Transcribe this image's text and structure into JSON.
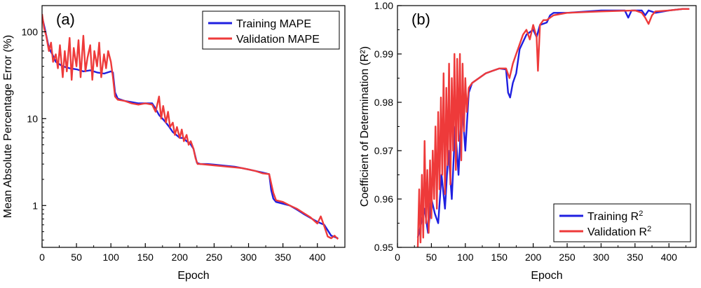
{
  "chart_data": [
    {
      "type": "line",
      "panel_label": "(a)",
      "xlabel": "Epoch",
      "ylabel": "Mean Absolute Percentage Error (%)",
      "yscale": "log",
      "xlim": [
        0,
        440
      ],
      "ylim": [
        0.33,
        200
      ],
      "xticks": [
        "0",
        "50",
        "100",
        "150",
        "200",
        "250",
        "300",
        "350",
        "400"
      ],
      "xtick_values": [
        0,
        50,
        100,
        150,
        200,
        250,
        300,
        350,
        400
      ],
      "yticks": [
        "1",
        "10",
        "100"
      ],
      "ytick_values": [
        1,
        10,
        100
      ],
      "legend_position": "top-right",
      "series": [
        {
          "name": "Training MAPE",
          "color": "#1f1fe0",
          "x": [
            0,
            5,
            10,
            15,
            20,
            30,
            40,
            50,
            60,
            70,
            80,
            90,
            100,
            103,
            106,
            110,
            120,
            130,
            140,
            150,
            160,
            165,
            170,
            175,
            180,
            185,
            190,
            195,
            200,
            205,
            210,
            215,
            220,
            225,
            230,
            240,
            250,
            260,
            270,
            280,
            290,
            300,
            310,
            320,
            330,
            333,
            336,
            340,
            350,
            360,
            370,
            380,
            390,
            400,
            410,
            420,
            430
          ],
          "y": [
            150,
            100,
            65,
            55,
            45,
            40,
            38,
            37,
            35,
            36,
            34,
            33,
            35,
            34,
            20,
            17,
            16,
            15.5,
            15,
            15,
            15,
            13,
            11,
            10,
            9,
            8,
            7,
            6.5,
            6,
            6,
            5.5,
            5.2,
            4.5,
            3.1,
            3.0,
            3.0,
            2.95,
            2.9,
            2.85,
            2.8,
            2.7,
            2.6,
            2.5,
            2.4,
            2.3,
            1.5,
            1.2,
            1.1,
            1.05,
            1.0,
            0.9,
            0.8,
            0.72,
            0.65,
            0.6,
            0.45,
            0.42
          ]
        },
        {
          "name": "Validation MAPE",
          "color": "#ee3a3a",
          "x": [
            0,
            3,
            6,
            10,
            13,
            16,
            20,
            23,
            26,
            30,
            33,
            36,
            40,
            43,
            46,
            50,
            53,
            56,
            60,
            63,
            66,
            70,
            73,
            76,
            80,
            83,
            86,
            90,
            93,
            96,
            100,
            103,
            106,
            110,
            120,
            130,
            140,
            150,
            160,
            165,
            170,
            173,
            176,
            180,
            183,
            186,
            190,
            193,
            196,
            200,
            203,
            206,
            210,
            213,
            216,
            220,
            223,
            226,
            230,
            240,
            250,
            260,
            270,
            280,
            290,
            300,
            310,
            320,
            330,
            333,
            336,
            340,
            350,
            360,
            370,
            380,
            390,
            400,
            405,
            410,
            415,
            420,
            425,
            430
          ],
          "y": [
            160,
            110,
            90,
            60,
            75,
            45,
            55,
            38,
            70,
            30,
            60,
            35,
            85,
            28,
            65,
            40,
            80,
            30,
            90,
            35,
            50,
            70,
            28,
            60,
            40,
            75,
            30,
            55,
            38,
            60,
            45,
            30,
            18,
            16.5,
            16,
            15,
            14.5,
            15,
            14.5,
            12,
            18,
            10,
            14,
            9,
            12,
            8,
            9,
            6.5,
            8,
            6,
            7.5,
            5.5,
            6.5,
            5,
            5.5,
            4.5,
            3.5,
            3.0,
            3.0,
            2.95,
            2.9,
            2.85,
            2.8,
            2.75,
            2.7,
            2.6,
            2.5,
            2.35,
            2.3,
            1.8,
            1.4,
            1.15,
            1.1,
            1.0,
            0.92,
            0.82,
            0.73,
            0.62,
            0.75,
            0.58,
            0.44,
            0.42,
            0.45,
            0.41
          ]
        }
      ]
    },
    {
      "type": "line",
      "panel_label": "(b)",
      "xlabel": "Epoch",
      "ylabel": "Coefficient of Determination (R²)",
      "xlim": [
        0,
        440
      ],
      "ylim": [
        0.95,
        1.0
      ],
      "xticks": [
        "0",
        "50",
        "100",
        "150",
        "200",
        "250",
        "300",
        "350",
        "400"
      ],
      "xtick_values": [
        0,
        50,
        100,
        150,
        200,
        250,
        300,
        350,
        400
      ],
      "yticks": [
        "0.95",
        "0.96",
        "0.97",
        "0.98",
        "0.99",
        "1.00"
      ],
      "ytick_values": [
        0.95,
        0.96,
        0.97,
        0.98,
        0.99,
        1.0
      ],
      "legend_position": "bottom-right",
      "series": [
        {
          "name": "Training R2",
          "color": "#1f1fe0",
          "x": [
            30,
            35,
            40,
            45,
            50,
            55,
            60,
            65,
            70,
            75,
            80,
            85,
            90,
            95,
            100,
            105,
            110,
            120,
            130,
            140,
            150,
            160,
            163,
            166,
            170,
            175,
            180,
            190,
            200,
            205,
            210,
            220,
            225,
            230,
            250,
            300,
            335,
            340,
            345,
            350,
            360,
            365,
            370,
            380,
            400,
            420,
            430
          ],
          "y": [
            0.952,
            0.955,
            0.958,
            0.953,
            0.96,
            0.957,
            0.955,
            0.965,
            0.958,
            0.97,
            0.96,
            0.975,
            0.965,
            0.98,
            0.97,
            0.982,
            0.984,
            0.985,
            0.986,
            0.9865,
            0.987,
            0.9868,
            0.982,
            0.981,
            0.984,
            0.986,
            0.991,
            0.994,
            0.995,
            0.9935,
            0.996,
            0.9965,
            0.998,
            0.9985,
            0.9985,
            0.999,
            0.999,
            0.9975,
            0.999,
            0.999,
            0.999,
            0.998,
            0.999,
            0.9985,
            0.999,
            0.9993,
            0.9993
          ]
        },
        {
          "name": "Validation R2",
          "color": "#ee3a3a",
          "x": [
            30,
            32,
            34,
            36,
            38,
            40,
            42,
            44,
            46,
            48,
            50,
            52,
            54,
            56,
            58,
            60,
            62,
            64,
            66,
            68,
            70,
            72,
            74,
            76,
            78,
            80,
            82,
            84,
            86,
            88,
            90,
            92,
            94,
            96,
            98,
            100,
            102,
            105,
            110,
            120,
            130,
            140,
            150,
            160,
            165,
            170,
            175,
            180,
            185,
            190,
            195,
            200,
            205,
            207,
            210,
            215,
            220,
            225,
            230,
            250,
            300,
            350,
            360,
            365,
            370,
            375,
            380,
            400,
            420,
            430
          ],
          "y": [
            0.95,
            0.962,
            0.951,
            0.965,
            0.952,
            0.972,
            0.955,
            0.966,
            0.953,
            0.968,
            0.956,
            0.97,
            0.96,
            0.975,
            0.958,
            0.978,
            0.962,
            0.981,
            0.965,
            0.986,
            0.961,
            0.983,
            0.967,
            0.988,
            0.963,
            0.985,
            0.97,
            0.99,
            0.966,
            0.989,
            0.972,
            0.99,
            0.968,
            0.988,
            0.974,
            0.985,
            0.978,
            0.983,
            0.984,
            0.985,
            0.986,
            0.9865,
            0.987,
            0.987,
            0.985,
            0.988,
            0.99,
            0.992,
            0.994,
            0.995,
            0.993,
            0.996,
            0.9935,
            0.9865,
            0.996,
            0.997,
            0.997,
            0.9975,
            0.998,
            0.9985,
            0.9988,
            0.999,
            0.9985,
            0.9975,
            0.9962,
            0.998,
            0.9988,
            0.999,
            0.9993,
            0.9993
          ]
        }
      ]
    }
  ]
}
